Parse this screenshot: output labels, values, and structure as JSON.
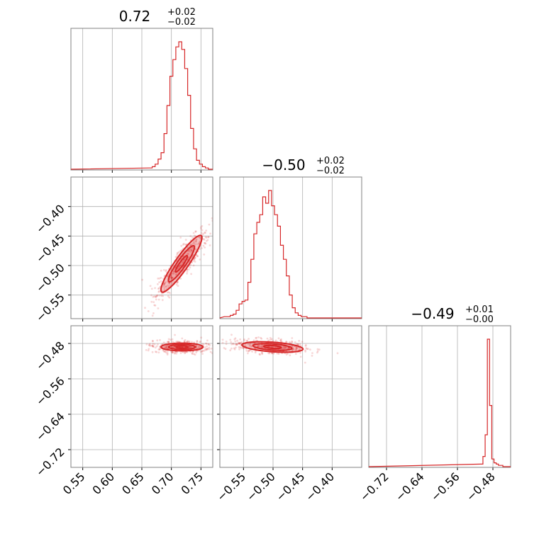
{
  "chart_data": {
    "type": "corner",
    "color": "#d62728",
    "titles": [
      {
        "median": "0.72",
        "plus": "+0.02",
        "minus": "−0.02"
      },
      {
        "median": "−0.50",
        "plus": "+0.02",
        "minus": "−0.02"
      },
      {
        "median": "−0.49",
        "plus": "+0.01",
        "minus": "−0.00"
      }
    ],
    "params": [
      {
        "range": [
          0.53,
          0.77
        ],
        "ticks": [
          0.55,
          0.6,
          0.65,
          0.7,
          0.75
        ],
        "tick_labels": [
          "0.55",
          "0.60",
          "0.65",
          "0.70",
          "0.75"
        ]
      },
      {
        "range": [
          -0.59,
          -0.35
        ],
        "ticks": [
          -0.55,
          -0.5,
          -0.45,
          -0.4
        ],
        "tick_labels": [
          "−0.55",
          "−0.50",
          "−0.45",
          "−0.40"
        ]
      },
      {
        "range": [
          -0.76,
          -0.44
        ],
        "ticks": [
          -0.72,
          -0.64,
          -0.56,
          -0.48
        ],
        "tick_labels": [
          "−0.72",
          "−0.64",
          "−0.56",
          "−0.48"
        ]
      }
    ],
    "histograms": [
      {
        "centers": [
          0.665,
          0.67,
          0.675,
          0.68,
          0.685,
          0.69,
          0.695,
          0.7,
          0.705,
          0.71,
          0.715,
          0.72,
          0.725,
          0.73,
          0.735,
          0.74,
          0.745,
          0.75,
          0.755,
          0.76,
          0.765
        ],
        "counts": [
          1,
          2,
          4,
          8,
          13,
          28,
          50,
          73,
          86,
          96,
          100,
          94,
          79,
          58,
          32,
          16,
          7,
          4,
          2,
          1,
          0
        ]
      },
      {
        "centers": [
          -0.58,
          -0.575,
          -0.57,
          -0.565,
          -0.56,
          -0.555,
          -0.55,
          -0.545,
          -0.54,
          -0.535,
          -0.53,
          -0.525,
          -0.52,
          -0.515,
          -0.51,
          -0.505,
          -0.5,
          -0.495,
          -0.49,
          -0.485,
          -0.48,
          -0.475,
          -0.47,
          -0.465,
          -0.46,
          -0.455,
          -0.45,
          -0.445,
          -0.44,
          -0.435,
          -0.43
        ],
        "counts": [
          1,
          1,
          2,
          3,
          6,
          11,
          13,
          14,
          28,
          46,
          66,
          75,
          81,
          95,
          90,
          100,
          88,
          81,
          72,
          57,
          46,
          33,
          18,
          8,
          4,
          2,
          1,
          1,
          0,
          0,
          0
        ]
      },
      {
        "centers": [
          -0.505,
          -0.5,
          -0.495,
          -0.49,
          -0.485,
          -0.48,
          -0.475,
          -0.47,
          -0.465,
          -0.46,
          -0.455,
          -0.45
        ],
        "counts": [
          2,
          8,
          25,
          100,
          48,
          6,
          3,
          2,
          1,
          1,
          0,
          0
        ]
      }
    ],
    "scatter_2d": [
      {
        "x_param": 0,
        "y_param": 1,
        "center": [
          0.717,
          -0.497
        ],
        "contour_levels_relative": [
          0.39,
          0.86,
          1.35
        ]
      },
      {
        "x_param": 0,
        "y_param": 2,
        "center": [
          0.718,
          -0.488
        ],
        "contour_levels_relative": [
          0.39,
          0.86,
          1.35
        ]
      },
      {
        "x_param": 1,
        "y_param": 2,
        "center": [
          -0.501,
          -0.488
        ],
        "contour_levels_relative": [
          0.39,
          0.86,
          1.35
        ]
      }
    ],
    "grid": true
  }
}
